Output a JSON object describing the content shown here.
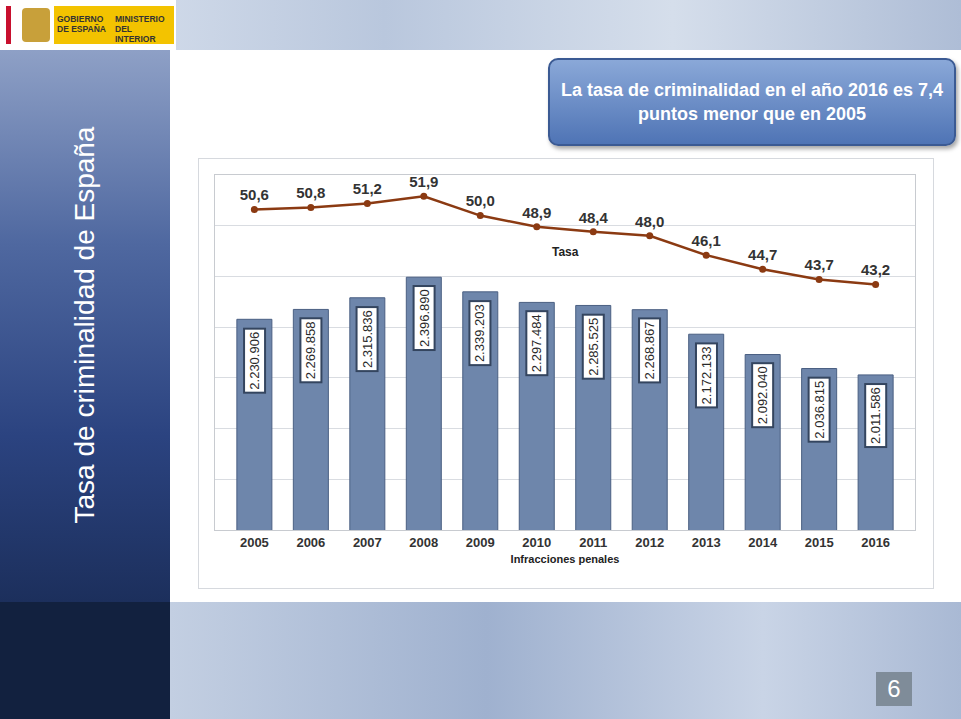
{
  "header": {
    "left": "GOBIERNO DE ESPAÑA",
    "right": "MINISTERIO DEL INTERIOR"
  },
  "page_number": 6,
  "chart_data": {
    "type": "bar",
    "title": "Tasa de criminalidad de España",
    "subtitle": "La tasa de criminalidad en el año 2016 es 7,4 puntos menor que en 2005",
    "categories": [
      "2005",
      "2006",
      "2007",
      "2008",
      "2009",
      "2010",
      "2011",
      "2012",
      "2013",
      "2014",
      "2015",
      "2016"
    ],
    "series": [
      {
        "name": "Infracciones penales",
        "type": "bar",
        "color": "#6e86ab",
        "values": [
          2230906,
          2269858,
          2315836,
          2396890,
          2339203,
          2297484,
          2285525,
          2268867,
          2172133,
          2092040,
          2036815,
          2011586
        ],
        "value_labels": [
          "2.230.906",
          "2.269.858",
          "2.315.836",
          "2.396.890",
          "2.339.203",
          "2.297.484",
          "2.285.525",
          "2.268.867",
          "2.172.133",
          "2.092.040",
          "2.036.815",
          "2.011.586"
        ]
      },
      {
        "name": "Tasa",
        "type": "line",
        "axis": "y2",
        "color": "#8b3a12",
        "marker": "circle",
        "values": [
          50.6,
          50.8,
          51.2,
          51.9,
          50.0,
          48.9,
          48.4,
          48.0,
          46.1,
          44.7,
          43.7,
          43.2
        ],
        "value_labels": [
          "50,6",
          "50,8",
          "51,2",
          "51,9",
          "50,0",
          "48,9",
          "48,4",
          "48,0",
          "46,1",
          "44,7",
          "43,7",
          "43,2"
        ]
      }
    ],
    "ylim": [
      1400000,
      2800000
    ],
    "yticks": [
      1400000,
      1600000,
      1800000,
      2000000,
      2200000,
      2400000,
      2600000,
      2800000
    ],
    "y2lim": [
      19,
      54
    ],
    "grid": true,
    "data_labels": true,
    "tick_labels": "x"
  }
}
